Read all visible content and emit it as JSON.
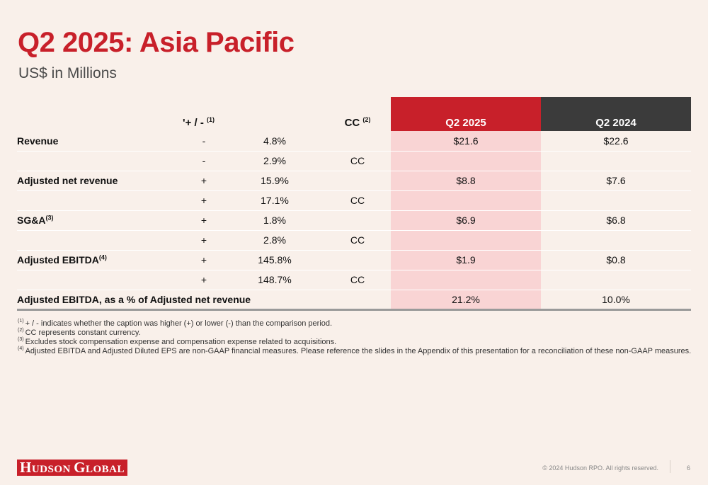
{
  "title": "Q2 2025: Asia Pacific",
  "subtitle": "US$ in Millions",
  "table": {
    "headers": {
      "pm": "'+ / -",
      "pm_sup": "(1)",
      "cc": "CC",
      "cc_sup": "(2)",
      "q2025": "Q2 2025",
      "q2024": "Q2 2024"
    },
    "rows": [
      {
        "label": "Revenue",
        "sup": "",
        "sign": "-",
        "pct": "4.8%",
        "cc": "",
        "q2025": "$21.6",
        "q2024": "$22.6"
      },
      {
        "label": "",
        "sup": "",
        "sign": "-",
        "pct": "2.9%",
        "cc": "CC",
        "q2025": "",
        "q2024": ""
      },
      {
        "label": "Adjusted net revenue",
        "sup": "",
        "sign": "+",
        "pct": "15.9%",
        "cc": "",
        "q2025": "$8.8",
        "q2024": "$7.6"
      },
      {
        "label": "",
        "sup": "",
        "sign": "+",
        "pct": "17.1%",
        "cc": "CC",
        "q2025": "",
        "q2024": ""
      },
      {
        "label": "SG&A",
        "sup": "(3)",
        "sign": "+",
        "pct": "1.8%",
        "cc": "",
        "q2025": "$6.9",
        "q2024": "$6.8"
      },
      {
        "label": "",
        "sup": "",
        "sign": "+",
        "pct": "2.8%",
        "cc": "CC",
        "q2025": "",
        "q2024": ""
      },
      {
        "label": "Adjusted EBITDA",
        "sup": "(4)",
        "sign": "+",
        "pct": "145.8%",
        "cc": "",
        "q2025": "$1.9",
        "q2024": "$0.8"
      },
      {
        "label": "",
        "sup": "",
        "sign": "+",
        "pct": "148.7%",
        "cc": "CC",
        "q2025": "",
        "q2024": ""
      },
      {
        "label": "Adjusted EBITDA, as a % of Adjusted net revenue",
        "sup": "",
        "sign": "",
        "pct": "",
        "cc": "",
        "q2025": "21.2%",
        "q2024": "10.0%"
      }
    ]
  },
  "footnotes": [
    {
      "mark": "(1)",
      "text": "+ / - indicates whether the caption was higher (+) or lower (-) than the comparison period."
    },
    {
      "mark": "(2)",
      "text": "CC represents constant currency."
    },
    {
      "mark": "(3)",
      "text": "Excludes stock compensation expense and compensation expense related to acquisitions."
    },
    {
      "mark": "(4)",
      "text": "Adjusted EBITDA and Adjusted Diluted EPS are non-GAAP financial measures. Please reference the slides in the Appendix of this presentation for a reconciliation of these non-GAAP measures."
    }
  ],
  "footer": {
    "logo": {
      "h": "H",
      "udson": "UDSON",
      "space": " ",
      "g": "G",
      "lobal": "LOBAL"
    },
    "copyright": "© 2024 Hudson RPO. All rights reserved.",
    "page": "6"
  },
  "colors": {
    "brand_red": "#c8202a",
    "dark_header": "#3b3b3b",
    "highlight": "#f9d4d4",
    "background": "#f9f0ea"
  }
}
